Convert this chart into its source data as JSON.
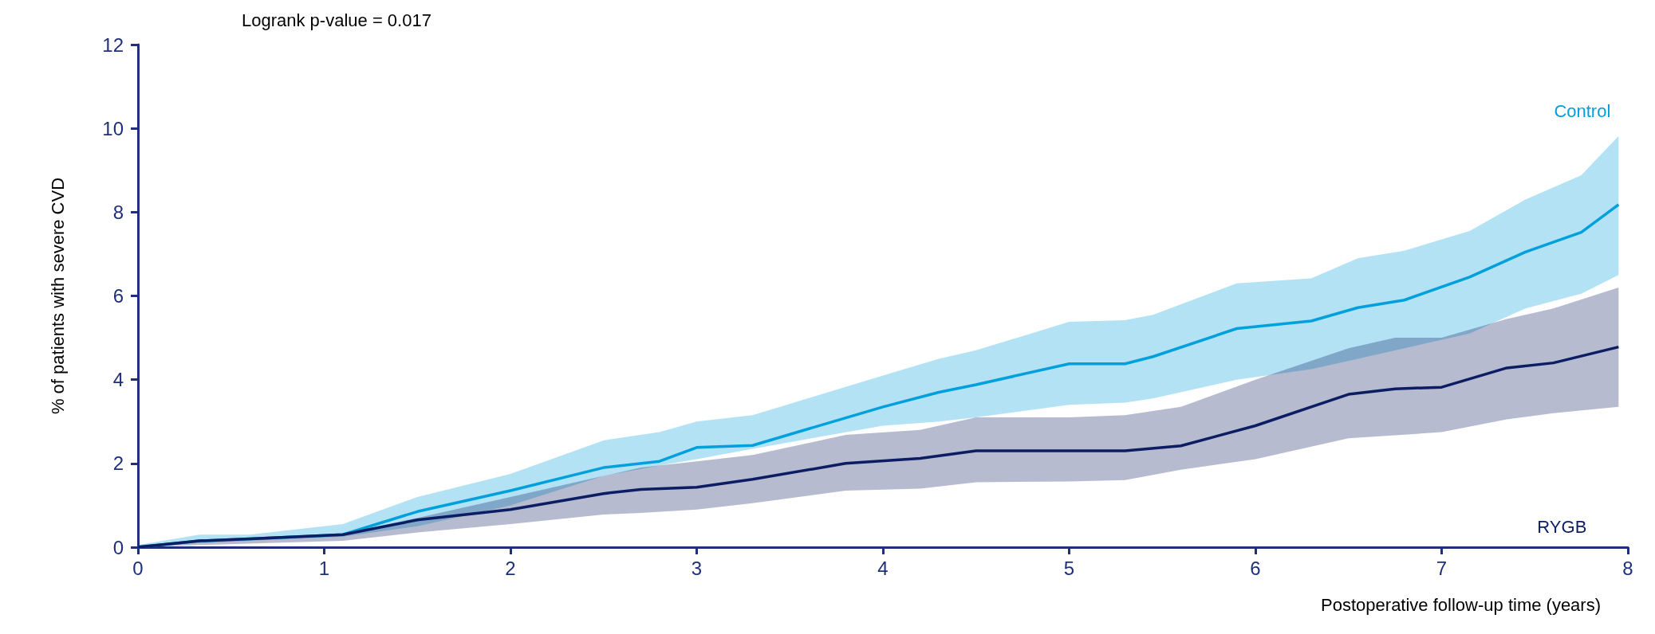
{
  "chart_data": {
    "type": "line",
    "xlabel": "Postoperative follow-up time (years)",
    "ylabel": "% of patients with severe CVD",
    "annotations": [
      "Logrank p-value = 0.017"
    ],
    "xlim": [
      0,
      8
    ],
    "xticks": [
      0,
      1,
      2,
      3,
      4,
      5,
      6,
      7,
      8
    ],
    "ylim": [
      0,
      12
    ],
    "yticks": [
      0,
      2,
      4,
      6,
      8,
      10,
      12
    ],
    "grid": false,
    "legend": false,
    "marker": "none",
    "line_style": "solid",
    "series": [
      {
        "name": "Control",
        "color": "#00a0dc",
        "x": [
          0,
          0.33,
          0.6,
          1.1,
          1.5,
          2,
          2.5,
          2.8,
          3,
          3.3,
          4,
          4.3,
          4.5,
          5,
          5.3,
          5.45,
          5.9,
          6.3,
          6.55,
          6.8,
          7.15,
          7.45,
          7.75,
          7.95
        ],
        "values": [
          0,
          0.15,
          0.2,
          0.3,
          0.85,
          1.35,
          1.9,
          2.05,
          2.38,
          2.43,
          3.35,
          3.7,
          3.88,
          4.38,
          4.38,
          4.55,
          5.22,
          5.4,
          5.72,
          5.9,
          6.45,
          7.05,
          7.52,
          8.18
        ],
        "upper": [
          0.05,
          0.3,
          0.3,
          0.55,
          1.2,
          1.75,
          2.55,
          2.75,
          3,
          3.15,
          4.1,
          4.5,
          4.7,
          5.38,
          5.42,
          5.55,
          6.3,
          6.42,
          6.9,
          7.08,
          7.55,
          8.3,
          8.88,
          9.82
        ],
        "lower": [
          0,
          0.1,
          0.15,
          0.25,
          0.5,
          1,
          1.7,
          1.95,
          2.1,
          2.35,
          2.9,
          3,
          3.1,
          3.4,
          3.45,
          3.55,
          4,
          4.25,
          4.5,
          4.75,
          5.1,
          5.7,
          6.05,
          6.5
        ]
      },
      {
        "name": "RYGB",
        "color": "#0c1d64",
        "x": [
          0,
          0.33,
          0.7,
          1.1,
          1.5,
          2,
          2.5,
          2.7,
          3,
          3.3,
          3.8,
          4.2,
          4.5,
          5,
          5.3,
          5.6,
          6,
          6.5,
          6.75,
          7,
          7.35,
          7.6,
          7.95
        ],
        "values": [
          0,
          0.15,
          0.22,
          0.3,
          0.65,
          0.9,
          1.28,
          1.38,
          1.43,
          1.62,
          2,
          2.12,
          2.3,
          2.3,
          2.3,
          2.42,
          2.9,
          3.65,
          3.78,
          3.82,
          4.28,
          4.4,
          4.78
        ],
        "upper": [
          0.05,
          0.15,
          0.25,
          0.32,
          0.7,
          1.2,
          1.7,
          1.9,
          2.05,
          2.2,
          2.68,
          2.8,
          3.1,
          3.1,
          3.15,
          3.35,
          4,
          4.75,
          5,
          5,
          5.45,
          5.7,
          6.2
        ],
        "lower": [
          0,
          0.05,
          0.1,
          0.15,
          0.35,
          0.55,
          0.78,
          0.82,
          0.9,
          1.05,
          1.35,
          1.4,
          1.55,
          1.57,
          1.6,
          1.85,
          2.1,
          2.6,
          2.67,
          2.75,
          3.05,
          3.2,
          3.35
        ]
      }
    ]
  }
}
